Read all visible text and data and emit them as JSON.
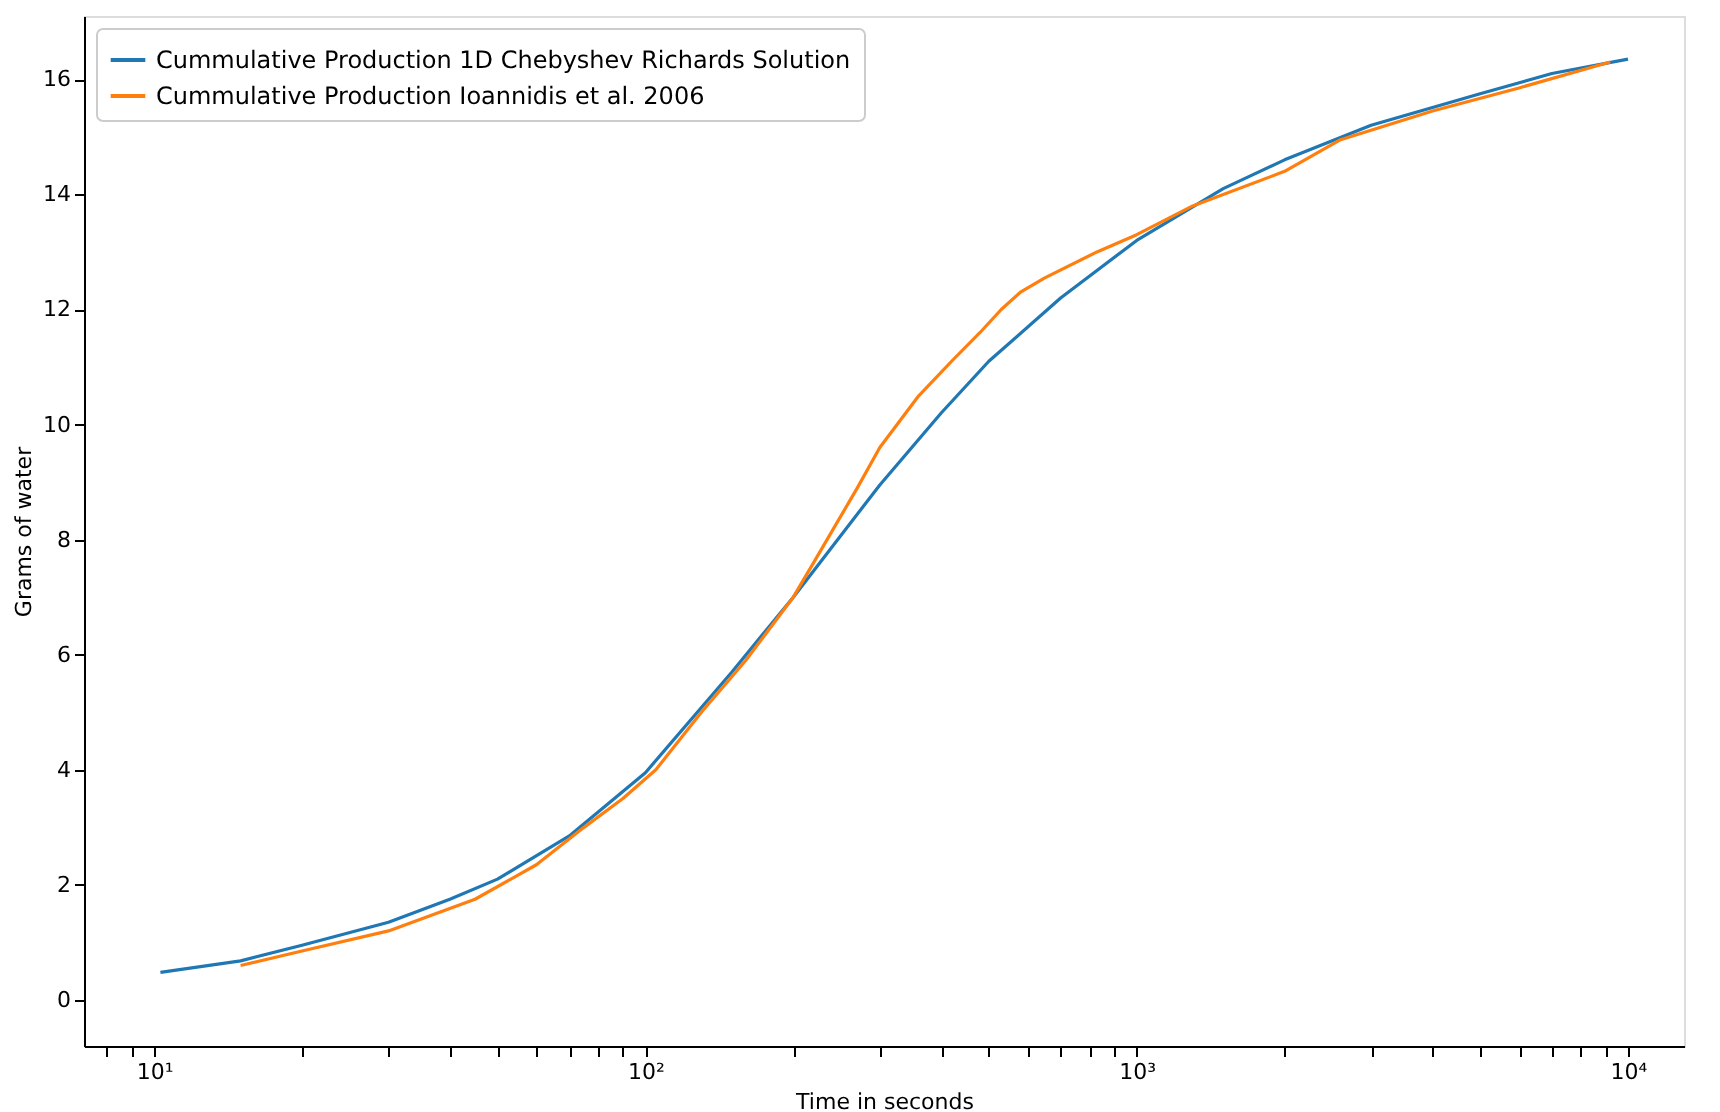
{
  "chart_data": {
    "type": "line",
    "xlabel": "Time in seconds",
    "ylabel": "Grams of water",
    "log": "x",
    "grid": false,
    "legend": "top left",
    "marker": "none",
    "line_style": "solid",
    "xlim": [
      7.2,
      13000
    ],
    "ylim": [
      -0.8,
      17.1
    ],
    "xticks": [
      {
        "value": 10,
        "label": "10¹"
      },
      {
        "value": 100,
        "label": "10²"
      },
      {
        "value": 1000,
        "label": "10³"
      },
      {
        "value": 10000,
        "label": "10⁴"
      },
      {
        "value": 8,
        "label": null
      },
      {
        "value": 9,
        "label": null
      },
      {
        "value": 20,
        "label": null
      },
      {
        "value": 30,
        "label": null
      },
      {
        "value": 40,
        "label": null
      },
      {
        "value": 50,
        "label": null
      },
      {
        "value": 60,
        "label": null
      },
      {
        "value": 70,
        "label": null
      },
      {
        "value": 80,
        "label": null
      },
      {
        "value": 90,
        "label": null
      },
      {
        "value": 200,
        "label": null
      },
      {
        "value": 300,
        "label": null
      },
      {
        "value": 400,
        "label": null
      },
      {
        "value": 500,
        "label": null
      },
      {
        "value": 600,
        "label": null
      },
      {
        "value": 700,
        "label": null
      },
      {
        "value": 800,
        "label": null
      },
      {
        "value": 900,
        "label": null
      },
      {
        "value": 2000,
        "label": null
      },
      {
        "value": 3000,
        "label": null
      },
      {
        "value": 4000,
        "label": null
      },
      {
        "value": 5000,
        "label": null
      },
      {
        "value": 6000,
        "label": null
      },
      {
        "value": 7000,
        "label": null
      },
      {
        "value": 8000,
        "label": null
      },
      {
        "value": 9000,
        "label": null
      }
    ],
    "yticks": [
      0,
      2,
      4,
      6,
      8,
      10,
      12,
      14,
      16
    ],
    "series": [
      {
        "name": "Cummulative Production 1D Chebyshev Richards Solution",
        "color": "#1f77b4",
        "x": [
          10.3,
          15,
          20,
          30,
          40,
          50,
          70,
          100,
          150,
          200,
          300,
          400,
          500,
          700,
          1000,
          1500,
          2000,
          3000,
          5000,
          7000,
          10000
        ],
        "values": [
          0.48,
          0.68,
          0.95,
          1.35,
          1.75,
          2.1,
          2.85,
          3.95,
          5.7,
          7.0,
          8.95,
          10.2,
          11.1,
          12.2,
          13.2,
          14.1,
          14.6,
          15.2,
          15.75,
          16.1,
          16.35
        ]
      },
      {
        "name": "Cummulative Production Ioannidis et al. 2006",
        "color": "#ff7f0e",
        "x": [
          15,
          20,
          30,
          45,
          60,
          75,
          90,
          105,
          130,
          160,
          200,
          220,
          270,
          300,
          360,
          420,
          480,
          530,
          580,
          650,
          830,
          1000,
          1300,
          2000,
          2600,
          4000,
          6000,
          9200
        ],
        "values": [
          0.6,
          0.85,
          1.2,
          1.75,
          2.35,
          3.0,
          3.5,
          4.0,
          5.0,
          5.9,
          7.0,
          7.6,
          8.9,
          9.6,
          10.5,
          11.1,
          11.6,
          12.0,
          12.3,
          12.55,
          13.0,
          13.3,
          13.8,
          14.4,
          14.95,
          15.45,
          15.85,
          16.3
        ]
      }
    ]
  }
}
